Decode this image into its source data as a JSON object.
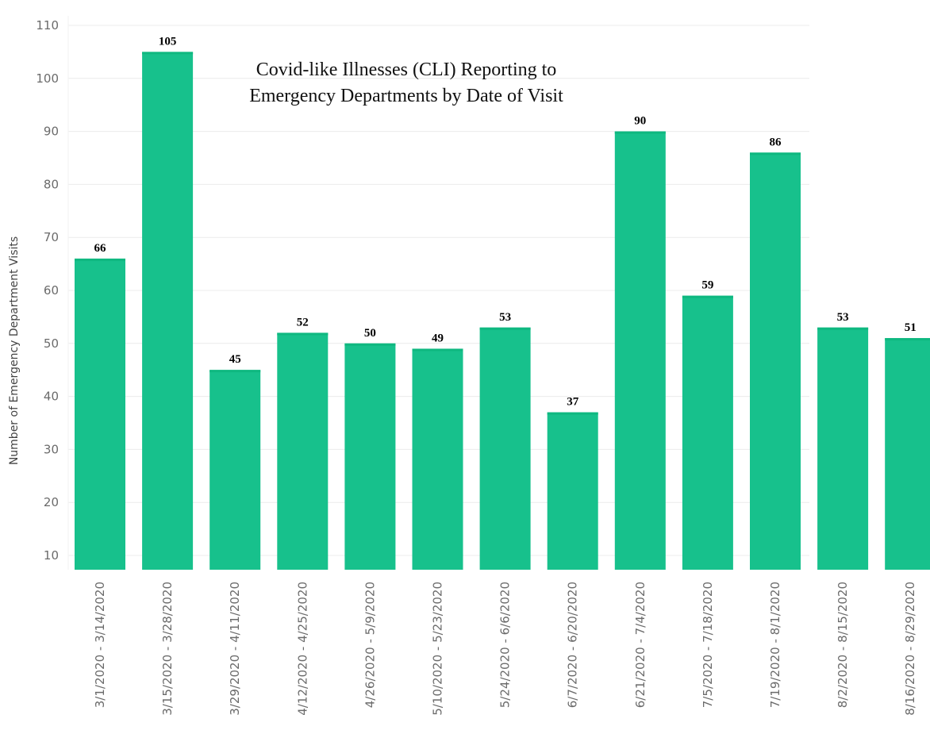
{
  "chart_data": {
    "type": "bar",
    "title_lines": [
      "Covid-like Illnesses (CLI) Reporting to",
      "Emergency Departments by Date of Visit"
    ],
    "xlabel": "",
    "ylabel": "Number of Emergency Department Visits",
    "ylim": [
      8,
      110
    ],
    "yticks": [
      10,
      20,
      30,
      40,
      50,
      60,
      70,
      80,
      90,
      100,
      110
    ],
    "grid": true,
    "categories": [
      "3/1/2020 - 3/14/2020",
      "3/15/2020 - 3/28/2020",
      "3/29/2020 - 4/11/2020",
      "4/12/2020 - 4/25/2020",
      "4/26/2020 - 5/9/2020",
      "5/10/2020 - 5/23/2020",
      "5/24/2020 - 6/6/2020",
      "6/7/2020 - 6/20/2020",
      "6/21/2020 - 7/4/2020",
      "7/5/2020 - 7/18/2020",
      "7/19/2020 - 8/1/2020",
      "8/2/2020 - 8/15/2020",
      "8/16/2020 - 8/29/2020"
    ],
    "values": [
      66,
      105,
      45,
      52,
      50,
      49,
      53,
      37,
      90,
      59,
      86,
      53,
      51
    ],
    "data_labels": [
      "66",
      "105",
      "45",
      "52",
      "50",
      "49",
      "53",
      "37",
      "90",
      "59",
      "86",
      "53",
      "51"
    ],
    "colors": {
      "bar": "#17c18c",
      "bar_top": "#0fb880",
      "grid": "#ececec",
      "tick_text": "#6b6b6b",
      "label_text": "#000000"
    }
  }
}
